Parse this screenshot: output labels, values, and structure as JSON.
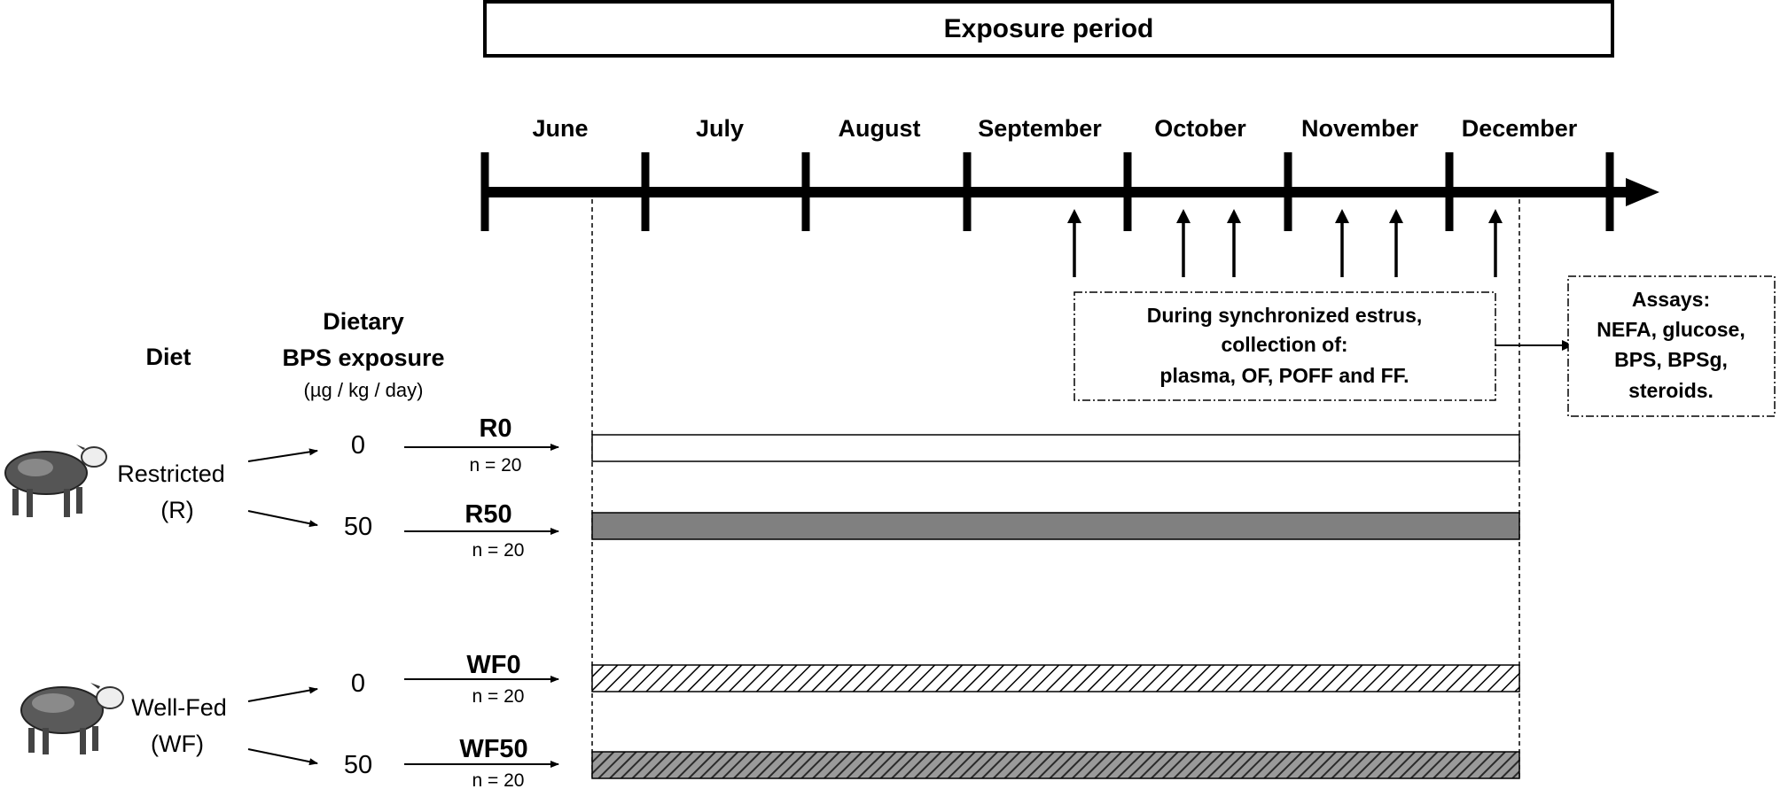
{
  "title": "Exposure period",
  "months": [
    "June",
    "July",
    "August",
    "September",
    "October",
    "November",
    "December"
  ],
  "headers": {
    "diet": "Diet",
    "exposure_line1": "Dietary",
    "exposure_line2": "BPS exposure",
    "exposure_units": "(µg / kg / day)"
  },
  "diets": [
    {
      "label": "Restricted",
      "abbr": "(R)"
    },
    {
      "label": "Well-Fed",
      "abbr": "(WF)"
    }
  ],
  "groups": [
    {
      "dose": "0",
      "name": "R0",
      "n": "n = 20",
      "fill": "#ffffff",
      "pattern": "none"
    },
    {
      "dose": "50",
      "name": "R50",
      "n": "n = 20",
      "fill": "#808080",
      "pattern": "none"
    },
    {
      "dose": "0",
      "name": "WF0",
      "n": "n = 20",
      "fill": "#ffffff",
      "pattern": "hatch-light"
    },
    {
      "dose": "50",
      "name": "WF50",
      "n": "n = 20",
      "fill": "#9a9a9a",
      "pattern": "hatch-dark"
    }
  ],
  "collection": {
    "line1": "During synchronized estrus,",
    "line2": "collection of:",
    "line3": "plasma, OF, POFF and FF."
  },
  "assays": {
    "line1": "Assays:",
    "line2": "NEFA, glucose,",
    "line3": "BPS, BPSg,",
    "line4": "steroids."
  }
}
